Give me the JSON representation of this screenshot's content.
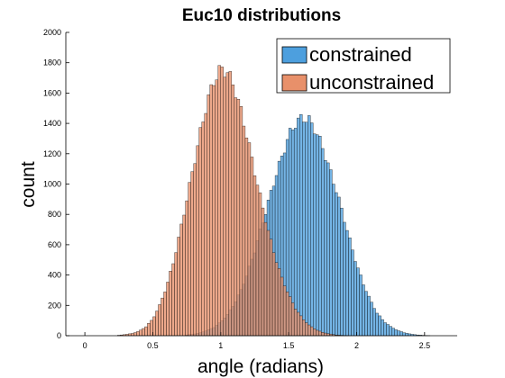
{
  "chart_data": {
    "type": "bar",
    "title": "Euc10 distributions",
    "xlabel": "angle (radians)",
    "ylabel": "count",
    "xlim": [
      -0.14,
      2.74
    ],
    "ylim": [
      0,
      2000
    ],
    "xticks": [
      0,
      0.5,
      1,
      1.5,
      2,
      2.5
    ],
    "xtick_labels": [
      "0",
      "0.5",
      "1",
      "1.5",
      "2",
      "2.5"
    ],
    "yticks": [
      0,
      200,
      400,
      600,
      800,
      1000,
      1200,
      1400,
      1600,
      1800,
      2000
    ],
    "ytick_labels": [
      "0",
      "200",
      "400",
      "600",
      "800",
      "1000",
      "1200",
      "1400",
      "1600",
      "1800",
      "2000"
    ],
    "legend_position": "top-right",
    "bin_width": 0.02,
    "series": [
      {
        "name": "constrained",
        "color": "#4d9fde",
        "bins": [
          {
            "x": 0.75,
            "count": 5
          },
          {
            "x": 0.8,
            "count": 10
          },
          {
            "x": 0.85,
            "count": 20
          },
          {
            "x": 0.9,
            "count": 35
          },
          {
            "x": 0.95,
            "count": 55
          },
          {
            "x": 1.0,
            "count": 90
          },
          {
            "x": 1.05,
            "count": 140
          },
          {
            "x": 1.1,
            "count": 210
          },
          {
            "x": 1.15,
            "count": 300
          },
          {
            "x": 1.2,
            "count": 420
          },
          {
            "x": 1.25,
            "count": 560
          },
          {
            "x": 1.3,
            "count": 720
          },
          {
            "x": 1.35,
            "count": 880
          },
          {
            "x": 1.4,
            "count": 1040
          },
          {
            "x": 1.45,
            "count": 1180
          },
          {
            "x": 1.5,
            "count": 1320
          },
          {
            "x": 1.55,
            "count": 1400
          },
          {
            "x": 1.6,
            "count": 1440
          },
          {
            "x": 1.65,
            "count": 1420
          },
          {
            "x": 1.7,
            "count": 1350
          },
          {
            "x": 1.75,
            "count": 1240
          },
          {
            "x": 1.8,
            "count": 1100
          },
          {
            "x": 1.85,
            "count": 960
          },
          {
            "x": 1.9,
            "count": 800
          },
          {
            "x": 1.95,
            "count": 630
          },
          {
            "x": 2.0,
            "count": 470
          },
          {
            "x": 2.05,
            "count": 340
          },
          {
            "x": 2.1,
            "count": 235
          },
          {
            "x": 2.15,
            "count": 150
          },
          {
            "x": 2.2,
            "count": 95
          },
          {
            "x": 2.25,
            "count": 60
          },
          {
            "x": 2.3,
            "count": 35
          },
          {
            "x": 2.35,
            "count": 20
          },
          {
            "x": 2.4,
            "count": 10
          },
          {
            "x": 2.45,
            "count": 5
          },
          {
            "x": 2.5,
            "count": 2
          },
          {
            "x": 2.55,
            "count": 0
          }
        ]
      },
      {
        "name": "unconstrained",
        "color": "#e8906a",
        "bins": [
          {
            "x": 0.25,
            "count": 3
          },
          {
            "x": 0.3,
            "count": 8
          },
          {
            "x": 0.35,
            "count": 15
          },
          {
            "x": 0.4,
            "count": 30
          },
          {
            "x": 0.45,
            "count": 60
          },
          {
            "x": 0.5,
            "count": 110
          },
          {
            "x": 0.55,
            "count": 200
          },
          {
            "x": 0.6,
            "count": 320
          },
          {
            "x": 0.65,
            "count": 480
          },
          {
            "x": 0.7,
            "count": 680
          },
          {
            "x": 0.75,
            "count": 900
          },
          {
            "x": 0.8,
            "count": 1120
          },
          {
            "x": 0.85,
            "count": 1340
          },
          {
            "x": 0.9,
            "count": 1540
          },
          {
            "x": 0.95,
            "count": 1680
          },
          {
            "x": 1.0,
            "count": 1760
          },
          {
            "x": 1.05,
            "count": 1740
          },
          {
            "x": 1.1,
            "count": 1640
          },
          {
            "x": 1.15,
            "count": 1480
          },
          {
            "x": 1.2,
            "count": 1290
          },
          {
            "x": 1.25,
            "count": 1080
          },
          {
            "x": 1.3,
            "count": 880
          },
          {
            "x": 1.35,
            "count": 690
          },
          {
            "x": 1.4,
            "count": 520
          },
          {
            "x": 1.45,
            "count": 380
          },
          {
            "x": 1.5,
            "count": 270
          },
          {
            "x": 1.55,
            "count": 180
          },
          {
            "x": 1.6,
            "count": 115
          },
          {
            "x": 1.65,
            "count": 70
          },
          {
            "x": 1.7,
            "count": 40
          },
          {
            "x": 1.75,
            "count": 22
          },
          {
            "x": 1.8,
            "count": 12
          },
          {
            "x": 1.85,
            "count": 5
          },
          {
            "x": 1.9,
            "count": 2
          },
          {
            "x": 1.95,
            "count": 0
          }
        ]
      }
    ]
  }
}
